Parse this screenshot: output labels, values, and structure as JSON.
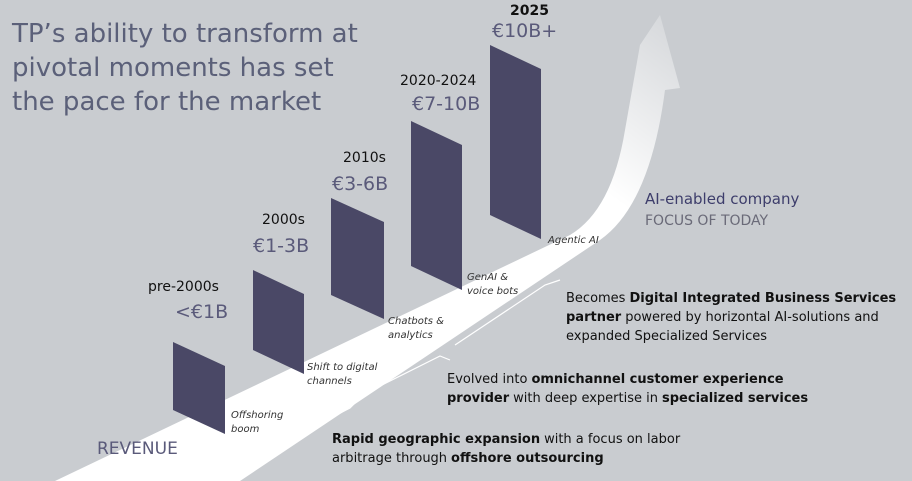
{
  "header": {
    "title_lines": [
      "TP’s ability to transform at",
      "pivotal moments has set",
      "the pace for the market"
    ]
  },
  "axis_label": "REVENUE",
  "eras": [
    {
      "period": "pre-2000s",
      "revenue": "<€1B",
      "caption": [
        "Offshoring",
        "boom"
      ]
    },
    {
      "period": "2000s",
      "revenue": "€1-3B",
      "caption": [
        "Shift to digital",
        "channels"
      ]
    },
    {
      "period": "2010s",
      "revenue": "€3-6B",
      "caption": [
        "Chatbots &",
        "analytics"
      ]
    },
    {
      "period": "2020-2024",
      "revenue": "€7-10B",
      "caption": [
        "GenAI &",
        "voice bots"
      ]
    },
    {
      "period": "2025",
      "revenue": "€10B+",
      "caption": [
        "Agentic AI"
      ]
    }
  ],
  "focus": {
    "label": "AI-enabled company",
    "sublabel": "FOCUS OF TODAY"
  },
  "descriptions": [
    {
      "lines": [
        [
          {
            "text": "Becomes",
            "bold": false
          },
          {
            "text": "Digital Integrated Business Services",
            "bold": true
          }
        ],
        [
          {
            "text": "partner",
            "bold": true
          },
          {
            "text": "powered by horizontal AI-solutions and",
            "bold": false
          }
        ],
        [
          {
            "text": "expanded Specialized Services",
            "bold": false
          }
        ]
      ]
    },
    {
      "lines": [
        [
          {
            "text": "Evolved into",
            "bold": false
          },
          {
            "text": "omnichannel customer experience",
            "bold": true
          }
        ],
        [
          {
            "text": "provider",
            "bold": true
          },
          {
            "text": "with deep expertise in",
            "bold": false
          },
          {
            "text": "specialized services",
            "bold": true
          }
        ]
      ]
    },
    {
      "lines": [
        [
          {
            "text": "Rapid geographic expansion",
            "bold": true
          },
          {
            "text": "with a focus on labor",
            "bold": false
          }
        ],
        [
          {
            "text": "arbitrage through",
            "bold": false
          },
          {
            "text": "offshore outsourcing",
            "bold": true
          }
        ]
      ]
    }
  ]
}
